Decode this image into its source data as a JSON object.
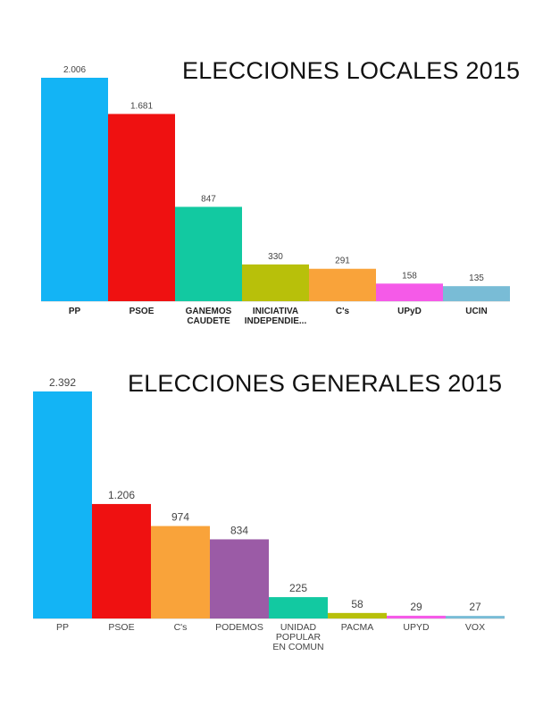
{
  "chart_data": [
    {
      "type": "bar",
      "title": "ELECCIONES LOCALES 2015",
      "categories": [
        "PP",
        "PSOE",
        "GANEMOS\nCAUDETE",
        "INICIATIVA\nINDEPENDIE...",
        "C's",
        "UPyD",
        "UCIN"
      ],
      "values": [
        2006,
        1681,
        847,
        330,
        291,
        158,
        135
      ],
      "value_labels": [
        "2.006",
        "1.681",
        "847",
        "330",
        "291",
        "158",
        "135"
      ],
      "colors": [
        "#13b4f5",
        "#ef1111",
        "#12c9a1",
        "#b8c00a",
        "#f9a33a",
        "#f55ae8",
        "#79bcd6"
      ],
      "ylim": [
        0,
        2006
      ],
      "grid": false,
      "xlabel": "",
      "ylabel": ""
    },
    {
      "type": "bar",
      "title": "ELECCIONES GENERALES 2015",
      "categories": [
        "PP",
        "PSOE",
        "C's",
        "PODEMOS",
        "UNIDAD\nPOPULAR\nEN COMUN",
        "PACMA",
        "UPYD",
        "VOX"
      ],
      "values": [
        2392,
        1206,
        974,
        834,
        225,
        58,
        29,
        27
      ],
      "value_labels": [
        "2.392",
        "1.206",
        "974",
        "834",
        "225",
        "58",
        "29",
        "27"
      ],
      "colors": [
        "#13b4f5",
        "#ef1111",
        "#f9a33a",
        "#9b5ba6",
        "#12c9a1",
        "#b8c00a",
        "#f55ae8",
        "#79bcd6"
      ],
      "ylim": [
        0,
        2392
      ],
      "grid": false,
      "xlabel": "",
      "ylabel": ""
    }
  ]
}
